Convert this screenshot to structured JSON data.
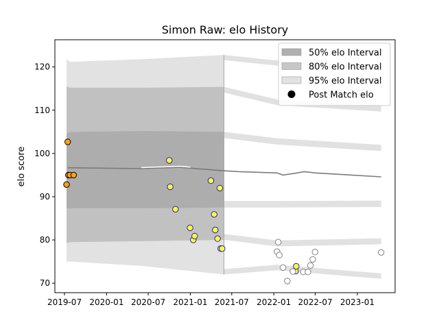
{
  "chart_data": {
    "type": "scatter",
    "title": "Simon Raw: elo History",
    "xlabel": "",
    "ylabel": "elo score",
    "xlim": [
      "2019-05-20",
      "2023-06-15"
    ],
    "ylim": [
      67.8,
      126.3
    ],
    "x_ticks": [
      "2019-07",
      "2020-01",
      "2020-07",
      "2021-01",
      "2021-07",
      "2022-01",
      "2022-07",
      "2023-01"
    ],
    "y_ticks": [
      70,
      80,
      90,
      100,
      110,
      120
    ],
    "grid": false,
    "legend_position": "top-right",
    "legend": [
      {
        "label": "50% elo Interval",
        "kind": "band",
        "color": "#b0b0b0"
      },
      {
        "label": "80% elo Interval",
        "kind": "band",
        "color": "#c6c6c6"
      },
      {
        "label": "95% elo Interval",
        "kind": "band",
        "color": "#e2e2e2"
      },
      {
        "label": "Post Match elo",
        "kind": "marker",
        "color": "#000000"
      }
    ],
    "mean_line": {
      "x": [
        "2019-07-15",
        "2020-06-01",
        "2020-11-15",
        "2021-01-01",
        "2021-05-25",
        "2021-08-01",
        "2022-01-15",
        "2022-02-10",
        "2022-04-01",
        "2022-05-15",
        "2022-07-01",
        "2023-04-15"
      ],
      "y": [
        96.7,
        96.5,
        96.8,
        96.6,
        96.0,
        95.8,
        95.5,
        95.0,
        95.4,
        95.8,
        95.5,
        94.6
      ]
    },
    "active_until": "2021-05-28",
    "bands": {
      "active": {
        "x": [
          "2019-07-10",
          "2019-07-25",
          "2020-06-01",
          "2021-05-28"
        ],
        "p95_high": [
          121.8,
          121.2,
          121.8,
          122.8
        ],
        "p80_high": [
          115.5,
          115.2,
          115.2,
          115.4
        ],
        "p50_high": [
          104.5,
          105.0,
          105.2,
          105.0
        ],
        "p50_low": [
          87.3,
          87.3,
          87.3,
          87.5
        ],
        "p80_low": [
          79.3,
          79.5,
          79.7,
          80.0
        ],
        "p95_low": [
          75.0,
          75.0,
          74.0,
          72.0
        ]
      },
      "projected": {
        "x": [
          "2021-05-28",
          "2022-01-15",
          "2023-04-15"
        ],
        "p95_high": [
          122.8,
          121.5,
          120.3
        ],
        "p80_high": [
          115.4,
          112.5,
          111.0
        ],
        "p50_high": [
          105.0,
          103.5,
          102.0
        ],
        "p50_low": [
          87.5,
          87.5,
          87.6
        ],
        "p80_low": [
          80.0,
          78.5,
          79.0
        ],
        "p95_low": [
          72.0,
          73.0,
          71.0
        ]
      }
    },
    "series": [
      {
        "marker_face": "#ff9f1c",
        "marker_edge": "#000000",
        "x": [
          "2019-07-10",
          "2019-07-15",
          "2019-07-18",
          "2019-07-25",
          "2019-08-10"
        ],
        "y": [
          92.8,
          102.7,
          95.0,
          95.0,
          95.0
        ]
      },
      {
        "marker_face": "#ffff33",
        "marker_edge": "#1f1fbf",
        "x": [
          "2020-10-01",
          "2020-10-05",
          "2020-10-28",
          "2020-12-31",
          "2021-01-14",
          "2021-01-20",
          "2021-04-01",
          "2021-04-15",
          "2021-04-20",
          "2021-04-30",
          "2021-05-10",
          "2021-05-14",
          "2021-05-20",
          "2022-04-06",
          "2022-04-09"
        ],
        "y": [
          98.4,
          92.3,
          87.1,
          82.8,
          80.0,
          80.9,
          93.7,
          85.9,
          82.3,
          80.3,
          92.0,
          78.0,
          78.0,
          72.8,
          73.9
        ]
      },
      {
        "marker_face": "#ffffff",
        "marker_edge": "#808080",
        "x": [
          "2022-01-15",
          "2022-01-25",
          "2022-02-10",
          "2022-03-01",
          "2022-03-25",
          "2022-05-10",
          "2022-05-30",
          "2022-06-10",
          "2022-06-20",
          "2022-06-30",
          "2023-04-15",
          "2022-01-20"
        ],
        "y": [
          77.3,
          76.5,
          73.6,
          70.5,
          72.7,
          72.6,
          72.6,
          74.1,
          75.5,
          77.2,
          77.1,
          79.5
        ]
      }
    ]
  }
}
